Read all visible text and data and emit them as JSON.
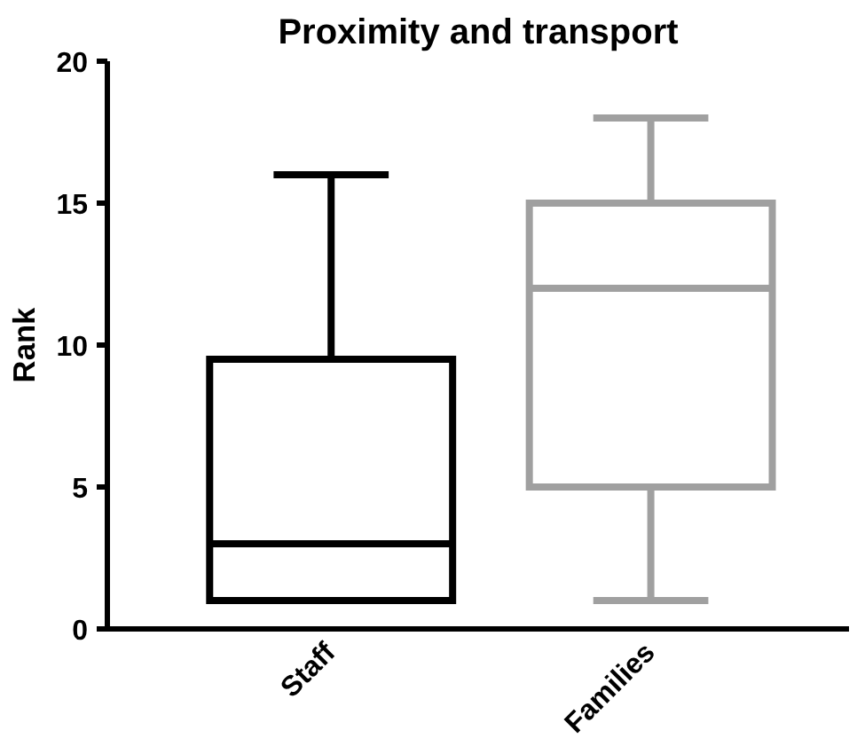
{
  "chart_data": {
    "type": "box",
    "title": "Proximity and transport",
    "ylabel": "Rank",
    "categories": [
      "Staff",
      "Families"
    ],
    "boxes": [
      {
        "low": 1,
        "q1": 1,
        "median": 3,
        "q3": 9.5,
        "high": 16
      },
      {
        "low": 1,
        "q1": 5,
        "median": 12,
        "q3": 15,
        "high": 18
      }
    ],
    "colors": [
      "#000000",
      "#a0a0a0"
    ],
    "ylim": [
      0,
      20
    ],
    "yticks": [
      0,
      5,
      10,
      15,
      20
    ],
    "grid": false
  }
}
